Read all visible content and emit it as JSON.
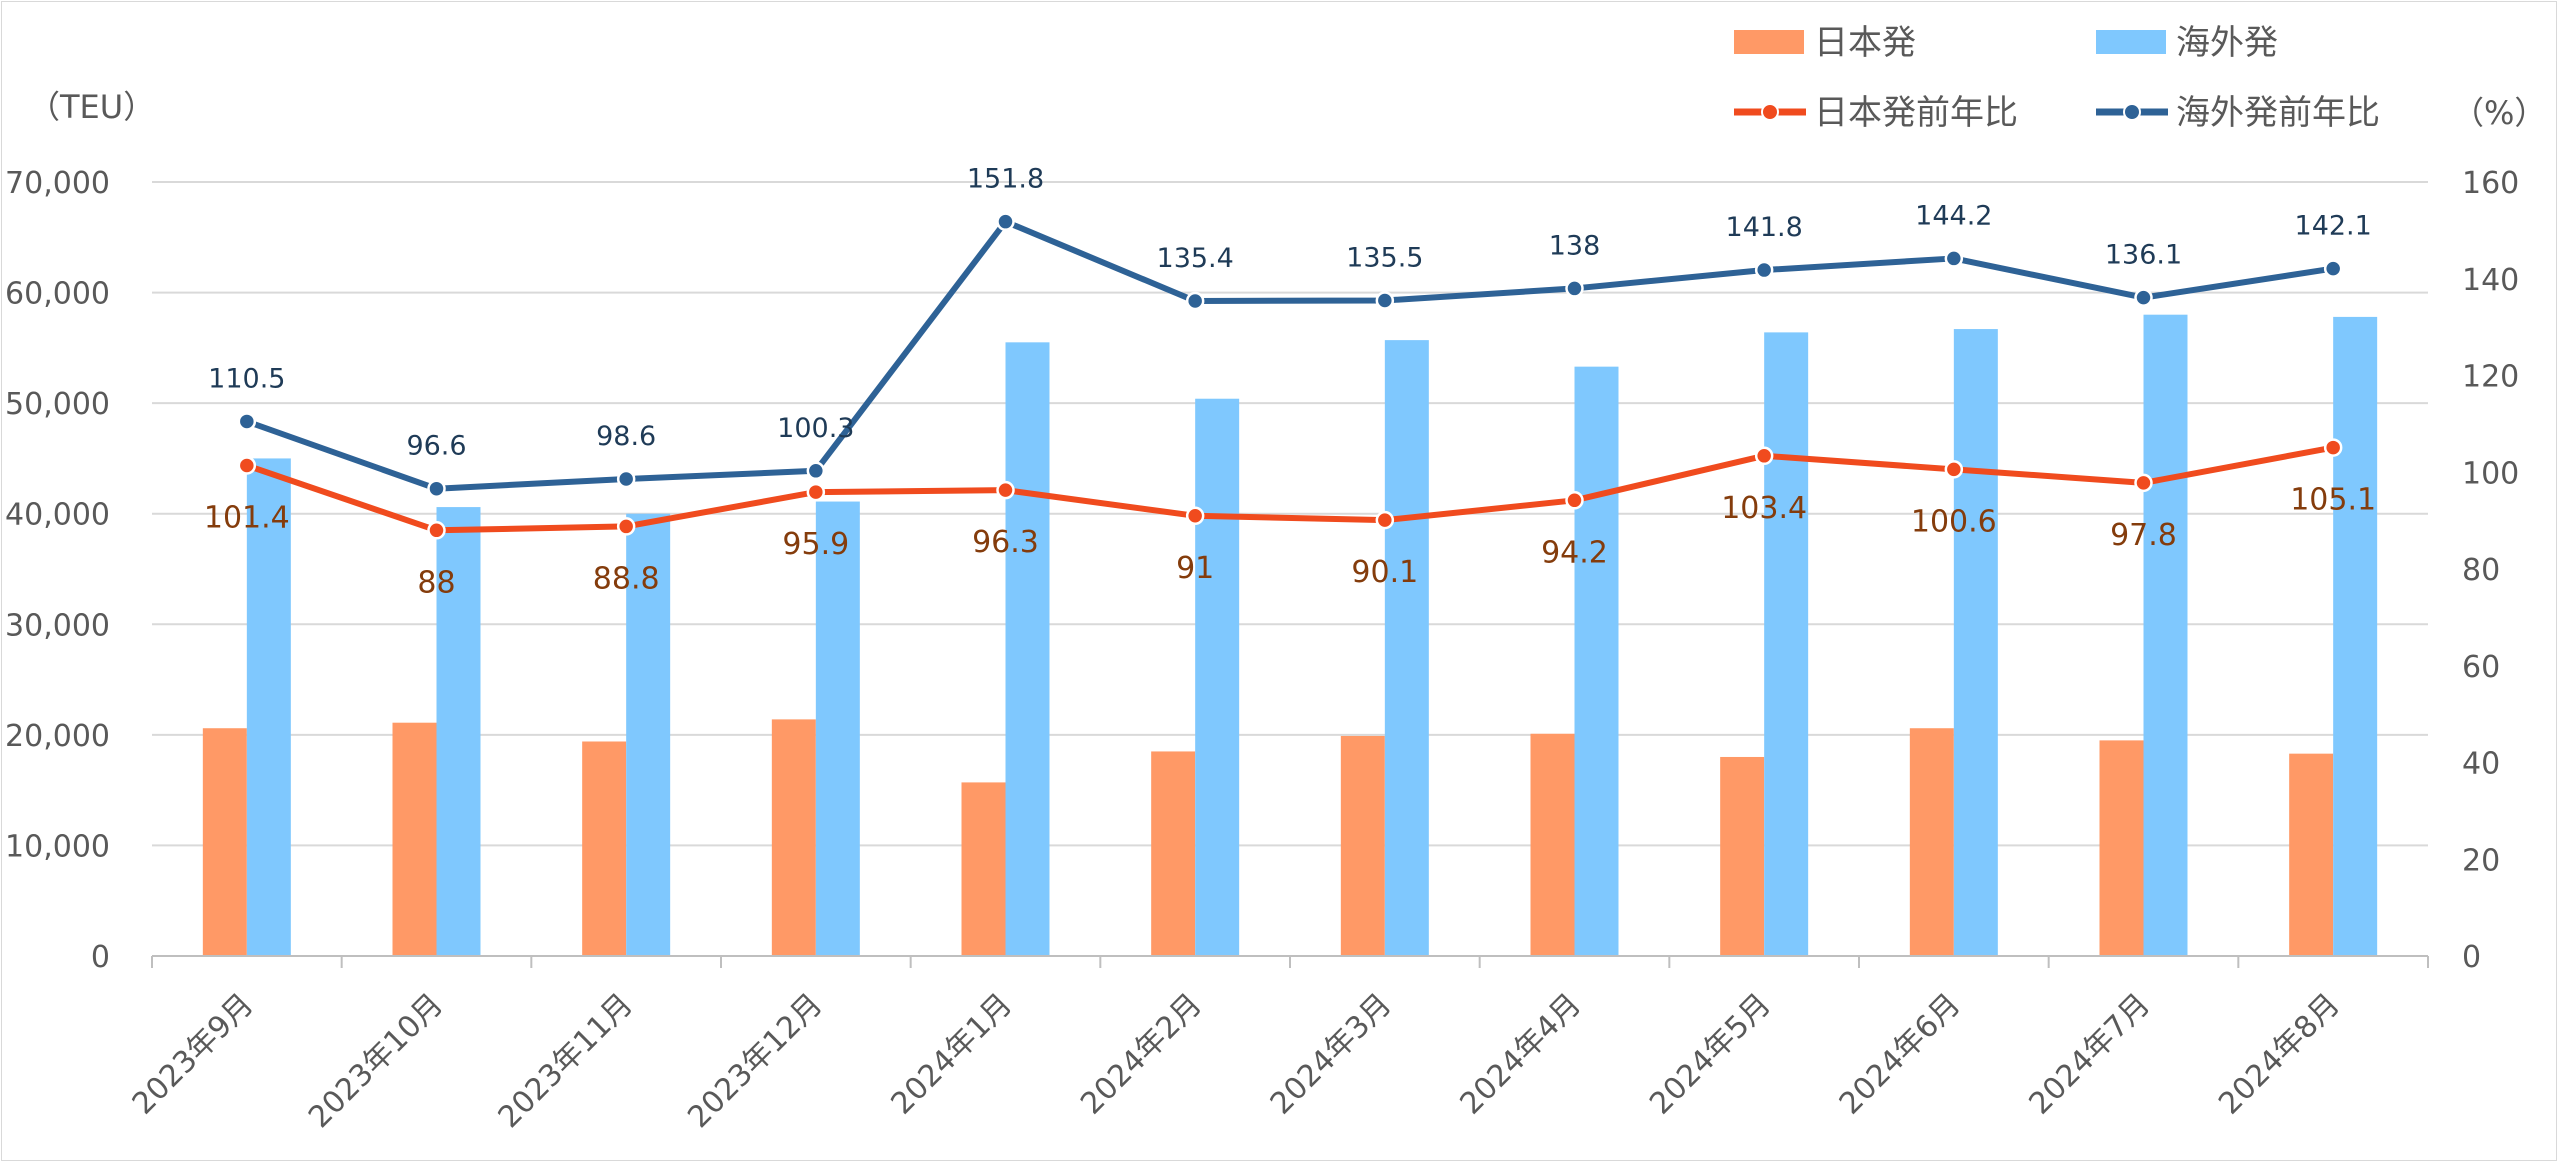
{
  "chart_data": {
    "type": "bar",
    "categories": [
      "2023年9月",
      "2023年10月",
      "2023年11月",
      "2023年12月",
      "2024年1月",
      "2024年2月",
      "2024年3月",
      "2024年4月",
      "2024年5月",
      "2024年6月",
      "2024年7月",
      "2024年8月"
    ],
    "series": [
      {
        "name": "日本発",
        "kind": "bar",
        "axis": "left",
        "color": "#ff9966",
        "values": [
          20600,
          21100,
          19400,
          21400,
          15700,
          18500,
          19900,
          20100,
          18000,
          20600,
          19500,
          18300
        ]
      },
      {
        "name": "海外発",
        "kind": "bar",
        "axis": "left",
        "color": "#7fc8fe",
        "values": [
          45000,
          40600,
          40000,
          41100,
          55500,
          50400,
          55700,
          53300,
          56400,
          56700,
          58000,
          57800
        ]
      },
      {
        "name": "日本発前年比",
        "kind": "line",
        "axis": "right",
        "color": "#f04b1e",
        "label_color": "#843c0c",
        "values": [
          101.4,
          88,
          88.8,
          95.9,
          96.3,
          91,
          90.1,
          94.2,
          103.4,
          100.6,
          97.8,
          105.1
        ],
        "labels": [
          "101.4",
          "88",
          "88.8",
          "95.9",
          "96.3",
          "91",
          "90.1",
          "94.2",
          "103.4",
          "100.6",
          "97.8",
          "105.1"
        ]
      },
      {
        "name": "海外発前年比",
        "kind": "line",
        "axis": "right",
        "color": "#2e6296",
        "label_color": "#1f3b57",
        "values": [
          110.5,
          96.6,
          98.6,
          100.3,
          151.8,
          135.4,
          135.5,
          138,
          141.8,
          144.2,
          136.1,
          142.1
        ],
        "labels": [
          "110.5",
          "96.6",
          "98.6",
          "100.3",
          "151.8",
          "135.4",
          "135.5",
          "138",
          "141.8",
          "144.2",
          "136.1",
          "142.1"
        ]
      }
    ],
    "y_left": {
      "unit": "（TEU）",
      "ylim": [
        0,
        70000
      ],
      "ticks": [
        "0",
        "10,000",
        "20,000",
        "30,000",
        "40,000",
        "50,000",
        "60,000",
        "70,000"
      ]
    },
    "y_right": {
      "unit": "（%）",
      "ylim": [
        0,
        160
      ],
      "ticks": [
        "0",
        "20",
        "40",
        "60",
        "80",
        "100",
        "120",
        "140",
        "160"
      ]
    },
    "grid": true,
    "legend_position": "top-right"
  }
}
